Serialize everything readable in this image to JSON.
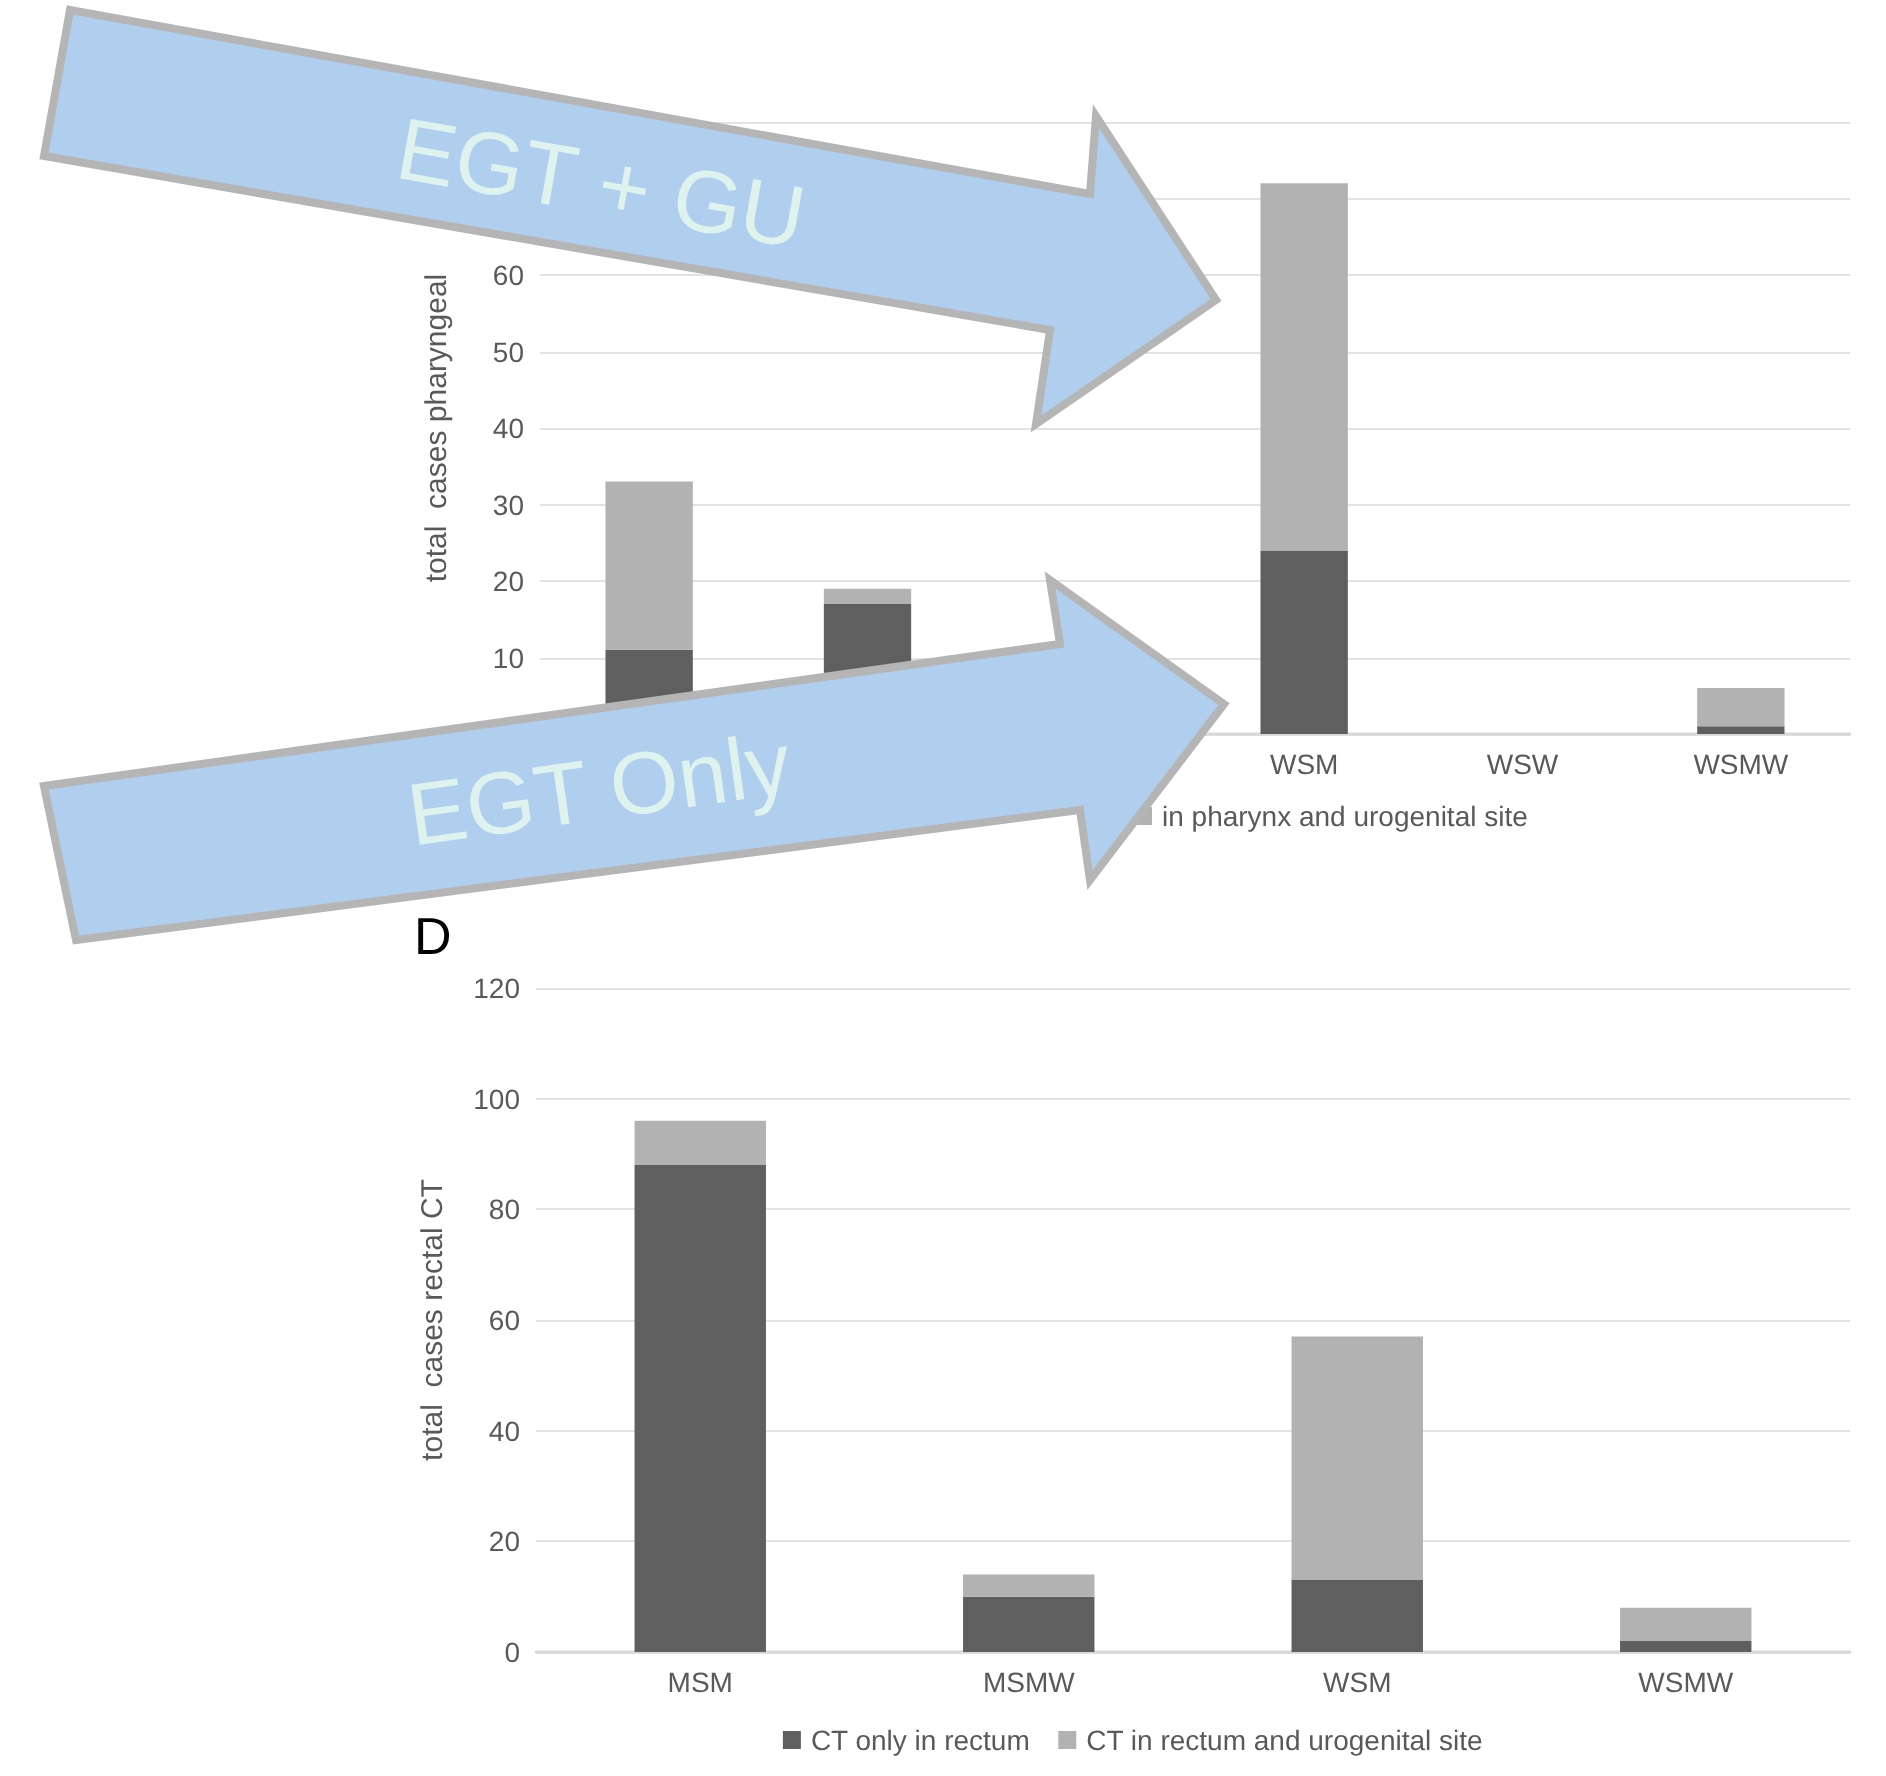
{
  "chart_data": [
    {
      "type": "bar",
      "ylabel": "total  cases pharyngeal",
      "categories": [
        null,
        null,
        null,
        "WSM",
        "WSW",
        "WSMW"
      ],
      "stacked": true,
      "ylim": [
        0,
        80
      ],
      "yticks": [
        {
          "value": 0,
          "label": null
        },
        10,
        20,
        30,
        40,
        50,
        60,
        {
          "value": 70,
          "label": null
        },
        {
          "value": 80,
          "label": null
        }
      ],
      "grid": "y",
      "legend": "bottom",
      "series": [
        {
          "color": "#5f5f5f",
          "values": [
            11,
            17,
            null,
            24,
            0,
            1
          ]
        },
        {
          "name": "in pharynx and urogenital site",
          "color": "#b2b2b2",
          "values": [
            22,
            2,
            null,
            48,
            0,
            5
          ]
        }
      ],
      "annotations": [
        "EGT + GU",
        "EGT Only"
      ]
    },
    {
      "type": "bar",
      "title": "D",
      "ylabel": "total  cases rectal CT",
      "categories": [
        "MSM",
        "MSMW",
        "WSM",
        "WSMW"
      ],
      "stacked": true,
      "ylim": [
        0,
        120
      ],
      "yticks": [
        0,
        20,
        40,
        60,
        80,
        100,
        120
      ],
      "grid": "y",
      "legend": "bottom",
      "series": [
        {
          "name": "CT only in rectum",
          "color": "#5f5f5f",
          "values": [
            88,
            10,
            13,
            2
          ]
        },
        {
          "name": "CT in rectum and urogenital site",
          "color": "#b2b2b2",
          "values": [
            8,
            4,
            44,
            6
          ]
        }
      ]
    }
  ]
}
